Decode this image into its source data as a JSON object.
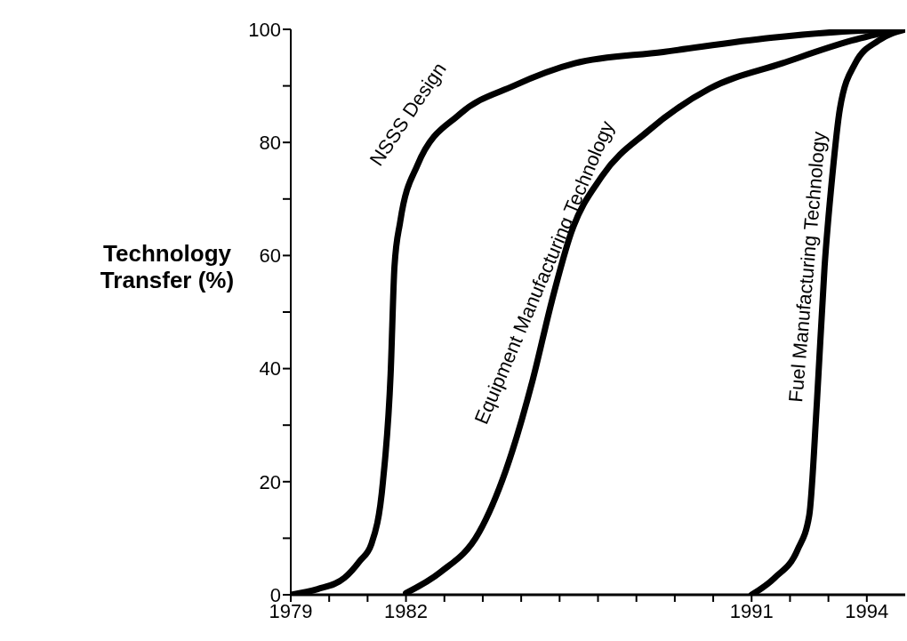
{
  "chart_data": {
    "type": "line",
    "ylabel": "Technology Transfer (%)",
    "xlim": [
      1979,
      1995
    ],
    "ylim": [
      0,
      100
    ],
    "xticks": [
      1979,
      {
        "value": 1980,
        "label": null
      },
      {
        "value": 1981,
        "label": null
      },
      1982,
      {
        "value": 1983,
        "label": null
      },
      {
        "value": 1984,
        "label": null
      },
      {
        "value": 1985,
        "label": null
      },
      {
        "value": 1986,
        "label": null
      },
      {
        "value": 1987,
        "label": null
      },
      {
        "value": 1988,
        "label": null
      },
      {
        "value": 1989,
        "label": null
      },
      {
        "value": 1990,
        "label": null
      },
      1991,
      {
        "value": 1992,
        "label": null
      },
      {
        "value": 1993,
        "label": null
      },
      1994
    ],
    "yticks": [
      0,
      {
        "value": 10,
        "label": null
      },
      20,
      {
        "value": 30,
        "label": null
      },
      40,
      {
        "value": 50,
        "label": null
      },
      60,
      {
        "value": 70,
        "label": null
      },
      80,
      {
        "value": 90,
        "label": null
      },
      100
    ],
    "marker": "none",
    "line_style": "solid",
    "series": [
      {
        "name": "NSSS Design",
        "color": "#000000",
        "x": [
          1979,
          1979.7,
          1980.4,
          1980.8,
          1981.1,
          1981.4,
          1981.6,
          1981.7,
          1981.85,
          1982.3,
          1983.4,
          1984.8,
          1986.4,
          1988.7,
          1991.5,
          1993.6,
          1994.9
        ],
        "values": [
          0,
          1,
          3,
          6,
          9,
          20,
          39,
          58,
          66,
          76,
          85,
          90,
          94,
          96,
          98.5,
          99.7,
          100
        ]
      },
      {
        "name": "Equipment Manufacturing Technology",
        "color": "#000000",
        "x": [
          1982,
          1982.9,
          1983.9,
          1984.6,
          1985.3,
          1985.8,
          1986.3,
          1987.1,
          1988.3,
          1989.9,
          1991.8,
          1993.6,
          1994.8
        ],
        "values": [
          0.3,
          4,
          11,
          22,
          38,
          52,
          64,
          74,
          82,
          89.5,
          94,
          98,
          100
        ]
      },
      {
        "name": "Fuel Manufacturing Technology",
        "color": "#000000",
        "x": [
          1991,
          1991.6,
          1992.2,
          1992.5,
          1992.7,
          1992.9,
          1993.1,
          1993.3,
          1993.7,
          1994.3,
          1995
        ],
        "values": [
          0,
          3,
          8,
          14,
          34,
          58,
          74,
          86,
          94,
          98,
          100
        ]
      }
    ]
  }
}
